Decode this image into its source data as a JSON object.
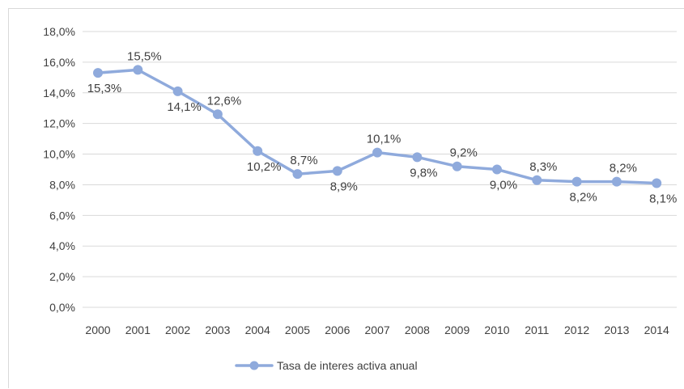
{
  "chart_data": {
    "type": "line",
    "title": "",
    "xlabel": "",
    "ylabel": "",
    "categories": [
      "2000",
      "2001",
      "2002",
      "2003",
      "2004",
      "2005",
      "2006",
      "2007",
      "2008",
      "2009",
      "2010",
      "2011",
      "2012",
      "2013",
      "2014"
    ],
    "series": [
      {
        "name": "Tasa de interes activa anual",
        "values": [
          15.3,
          15.5,
          14.1,
          12.6,
          10.2,
          8.7,
          8.9,
          10.1,
          9.8,
          9.2,
          9.0,
          8.3,
          8.2,
          8.2,
          8.1
        ],
        "labels": [
          "15,3%",
          "15,5%",
          "14,1%",
          "12,6%",
          "10,2%",
          "8,7%",
          "8,9%",
          "10,1%",
          "9,8%",
          "9,2%",
          "9,0%",
          "8,3%",
          "8,2%",
          "8,2%",
          "8,1%"
        ],
        "label_side": [
          "below",
          "above",
          "below",
          "above",
          "below",
          "above",
          "below",
          "above",
          "below",
          "above",
          "below",
          "above",
          "below",
          "above",
          "below"
        ],
        "color": "#8faadc"
      }
    ],
    "ylim": [
      0,
      18
    ],
    "yticks": [
      0,
      2,
      4,
      6,
      8,
      10,
      12,
      14,
      16,
      18
    ],
    "ytick_labels": [
      "0,0%",
      "2,0%",
      "4,0%",
      "6,0%",
      "8,0%",
      "10,0%",
      "12,0%",
      "14,0%",
      "16,0%",
      "18,0%"
    ],
    "grid": true,
    "gridline_color": "#d9d9d9",
    "legend": "bottom",
    "marker": "circle"
  }
}
